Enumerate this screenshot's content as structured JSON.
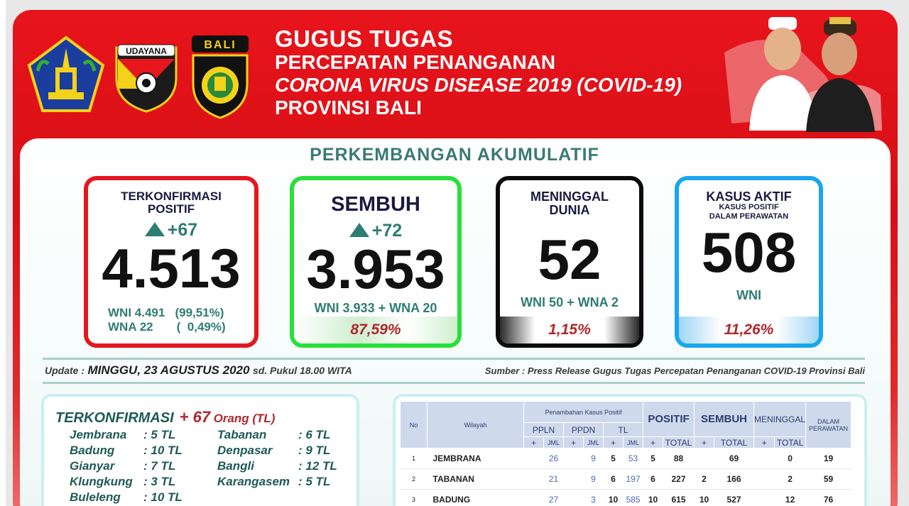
{
  "header": {
    "title_line1": "GUGUS TUGAS",
    "title_line2": "PERCEPATAN PENANGANAN",
    "title_line3": "CORONA VIRUS DISEASE 2019 (COVID-19)",
    "title_line4": "PROVINSI BALI",
    "logo2_text": "UDAYANA",
    "logo3_text": "BALI"
  },
  "section_title": "PERKEMBANGAN AKUMULATIF",
  "cards": {
    "positif": {
      "head1": "TERKONFIRMASI",
      "head2": "POSITIF",
      "delta": "+67",
      "value": "4.513",
      "sub1": "WNI 4.491   (99,51%)",
      "sub2": "WNA 22       (  0,49%)"
    },
    "sembuh": {
      "head": "SEMBUH",
      "delta": "+72",
      "value": "3.953",
      "sub": "WNI 3.933 + WNA 20",
      "pct": "87,59%"
    },
    "meninggal": {
      "head1": "MENINGGAL",
      "head2": "DUNIA",
      "value": "52",
      "sub": "WNI 50 + WNA 2",
      "pct": "1,15%"
    },
    "aktif": {
      "head1": "KASUS AKTIF",
      "head2": "KASUS POSITIF",
      "head3": "DALAM PERAWATAN",
      "value": "508",
      "sub": "WNI",
      "pct": "11,26%"
    }
  },
  "update": {
    "label": "Update  :",
    "date": "MINGGU, 23 AGUSTUS 2020",
    "suffix": "sd. Pukul 18.00 WITA"
  },
  "source": "Sumber :   Press Release Gugus Tugas Percepatan Penanganan COVID-19 Provinsi Bali",
  "terkonfirmasi": {
    "label": "TERKONFIRMASI",
    "count": "+ 67",
    "unit": "Orang (TL)",
    "items": [
      {
        "name": "Jembrana",
        "value": ": 5 TL"
      },
      {
        "name": "Badung",
        "value": ": 10 TL"
      },
      {
        "name": "Gianyar",
        "value": ": 7 TL"
      },
      {
        "name": "Klungkung",
        "value": ": 3 TL"
      },
      {
        "name": "Buleleng",
        "value": ": 10 TL"
      },
      {
        "name": "Tabanan",
        "value": ": 6 TL"
      },
      {
        "name": "Denpasar",
        "value": ": 9 TL"
      },
      {
        "name": "Bangli",
        "value": ": 12 TL"
      },
      {
        "name": "Karangasem",
        "value": ": 5 TL"
      }
    ]
  },
  "table": {
    "headers": {
      "no": "No",
      "wilayah": "Wilayah",
      "penambahan": "Penambahan Kasus Positif",
      "ppln": "PPLN",
      "ppdn": "PPDN",
      "tl": "TL",
      "positif": "POSITIF",
      "sembuh": "SEMBUH",
      "meninggal": "MENINGGAL",
      "dalam": "DALAM",
      "perawatan": "PERAWATAN",
      "plus": "+",
      "jml": "JML",
      "total": "TOTAL"
    },
    "rows": [
      {
        "no": "1",
        "wilayah": "JEMBRANA",
        "ppln_plus": "",
        "ppln_jml": "26",
        "ppdn_plus": "",
        "ppdn_jml": "9",
        "tl_plus": "5",
        "tl_jml": "53",
        "pos_plus": "5",
        "pos_total": "88",
        "sem_plus": "",
        "sem_total": "69",
        "men_plus": "",
        "men_total": "0",
        "dalam": "19"
      },
      {
        "no": "2",
        "wilayah": "TABANAN",
        "ppln_plus": "",
        "ppln_jml": "21",
        "ppdn_plus": "",
        "ppdn_jml": "9",
        "tl_plus": "6",
        "tl_jml": "197",
        "pos_plus": "6",
        "pos_total": "227",
        "sem_plus": "2",
        "sem_total": "166",
        "men_plus": "",
        "men_total": "2",
        "dalam": "59"
      },
      {
        "no": "3",
        "wilayah": "BADUNG",
        "ppln_plus": "",
        "ppln_jml": "27",
        "ppdn_plus": "",
        "ppdn_jml": "3",
        "tl_plus": "10",
        "tl_jml": "585",
        "pos_plus": "10",
        "pos_total": "615",
        "sem_plus": "10",
        "sem_total": "527",
        "men_plus": "",
        "men_total": "12",
        "dalam": "76"
      }
    ]
  }
}
